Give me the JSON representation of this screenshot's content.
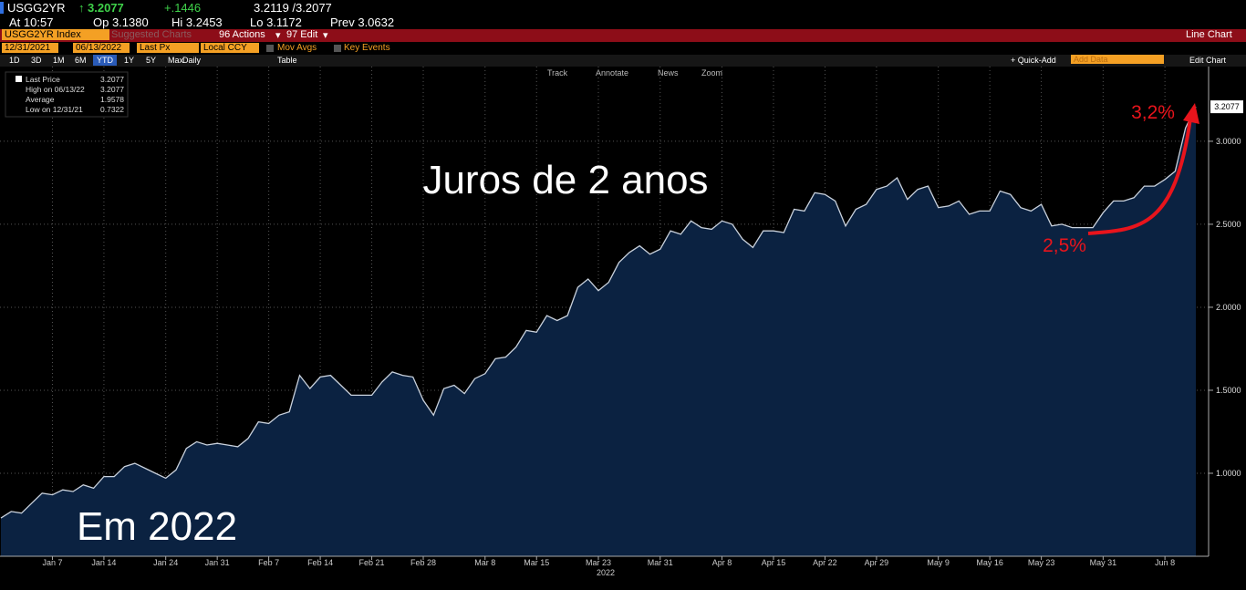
{
  "header": {
    "ticker": "USGG2YR",
    "last": "3.2077",
    "change": "+.1446",
    "bid_ask": "3.2119 /3.2077",
    "time": "At 10:57",
    "open": "Op 3.1380",
    "high": "Hi 3.2453",
    "low": "Lo 3.1172",
    "prev": "Prev 3.0632"
  },
  "toolbar": {
    "security": "USGG2YR Index",
    "suggested": "Suggested Charts",
    "actions": "96 Actions",
    "edit": "97 Edit",
    "chart_type": "Line Chart",
    "start": "12/31/2021",
    "end": "06/13/2022",
    "field": "Last Px",
    "currency": "Local CCY",
    "mov_avgs": "Mov Avgs",
    "key_events": "Key Events",
    "periods": [
      "1D",
      "3D",
      "1M",
      "6M",
      "YTD",
      "1Y",
      "5Y",
      "Max"
    ],
    "frequency": "Daily",
    "table": "Table",
    "quick_add": "+ Quick-Add",
    "add_data": "Add Data",
    "edit_chart": "Edit Chart",
    "tools": [
      "Track",
      "Annotate",
      "News",
      "Zoom"
    ]
  },
  "chart_data": {
    "type": "line",
    "title": "Juros de 2 anos",
    "xlabel": "2022",
    "annotations": [
      "Em 2022",
      "3,2%",
      "2,5%"
    ],
    "stats": [
      {
        "label": "Last Price",
        "value": "3.2077"
      },
      {
        "label": "High on 06/13/22",
        "value": "3.2077"
      },
      {
        "label": "Average",
        "value": "1.9578"
      },
      {
        "label": "Low on 12/31/21",
        "value": "0.7322"
      }
    ],
    "last_value_label": "3.2077",
    "categories": [
      null,
      null,
      null,
      null,
      null,
      "Jan 7",
      null,
      null,
      null,
      null,
      "Jan 14",
      null,
      null,
      null,
      null,
      null,
      "Jan 24",
      null,
      null,
      null,
      null,
      "Jan 31",
      null,
      null,
      null,
      null,
      "Feb 7",
      null,
      null,
      null,
      null,
      "Feb 14",
      null,
      null,
      null,
      null,
      "Feb 21",
      null,
      null,
      null,
      null,
      "Feb 28",
      null,
      null,
      null,
      null,
      null,
      "Mar 8",
      null,
      null,
      null,
      null,
      "Mar 15",
      null,
      null,
      null,
      null,
      null,
      "Mar 23",
      null,
      null,
      null,
      null,
      null,
      "Mar 31",
      null,
      null,
      null,
      null,
      null,
      "Apr 8",
      null,
      null,
      null,
      null,
      "Apr 15",
      null,
      null,
      null,
      null,
      "Apr 22",
      null,
      null,
      null,
      null,
      "Apr 29",
      null,
      null,
      null,
      null,
      null,
      "May 9",
      null,
      null,
      null,
      null,
      "May 16",
      null,
      null,
      null,
      null,
      "May 23",
      null,
      null,
      null,
      null,
      null,
      "May 31",
      null,
      null,
      null,
      null,
      null,
      "Jun 8",
      null,
      null,
      null
    ],
    "series": [
      {
        "color": "#c9d1dc",
        "fill": "#0b2241",
        "values": [
          0.73,
          0.77,
          0.76,
          0.82,
          0.88,
          0.87,
          0.9,
          0.89,
          0.93,
          0.91,
          0.98,
          0.98,
          1.04,
          1.06,
          1.03,
          1.0,
          0.97,
          1.02,
          1.15,
          1.19,
          1.17,
          1.18,
          1.17,
          1.16,
          1.21,
          1.31,
          1.3,
          1.35,
          1.37,
          1.59,
          1.51,
          1.58,
          1.59,
          1.53,
          1.47,
          1.47,
          1.47,
          1.55,
          1.61,
          1.59,
          1.58,
          1.44,
          1.35,
          1.51,
          1.53,
          1.48,
          1.57,
          1.6,
          1.69,
          1.7,
          1.76,
          1.86,
          1.85,
          1.95,
          1.92,
          1.95,
          2.12,
          2.17,
          2.1,
          2.15,
          2.27,
          2.33,
          2.37,
          2.32,
          2.35,
          2.46,
          2.44,
          2.52,
          2.48,
          2.47,
          2.52,
          2.5,
          2.41,
          2.36,
          2.46,
          2.46,
          2.45,
          2.59,
          2.58,
          2.69,
          2.68,
          2.64,
          2.49,
          2.59,
          2.62,
          2.71,
          2.73,
          2.78,
          2.65,
          2.71,
          2.73,
          2.6,
          2.61,
          2.64,
          2.56,
          2.58,
          2.58,
          2.7,
          2.68,
          2.6,
          2.58,
          2.62,
          2.49,
          2.5,
          2.48,
          2.48,
          2.48,
          2.57,
          2.64,
          2.64,
          2.66,
          2.73,
          2.73,
          2.77,
          2.82,
          3.08,
          3.2077
        ]
      }
    ],
    "ylim": [
      0.5,
      3.45
    ],
    "yticks": [
      {
        "value": 1,
        "label": "1.0000"
      },
      {
        "value": 1.5,
        "label": "1.5000"
      },
      {
        "value": 2,
        "label": "2.0000"
      },
      {
        "value": 2.5,
        "label": "2.5000"
      },
      {
        "value": 3,
        "label": "3.0000"
      }
    ],
    "grid": true
  }
}
